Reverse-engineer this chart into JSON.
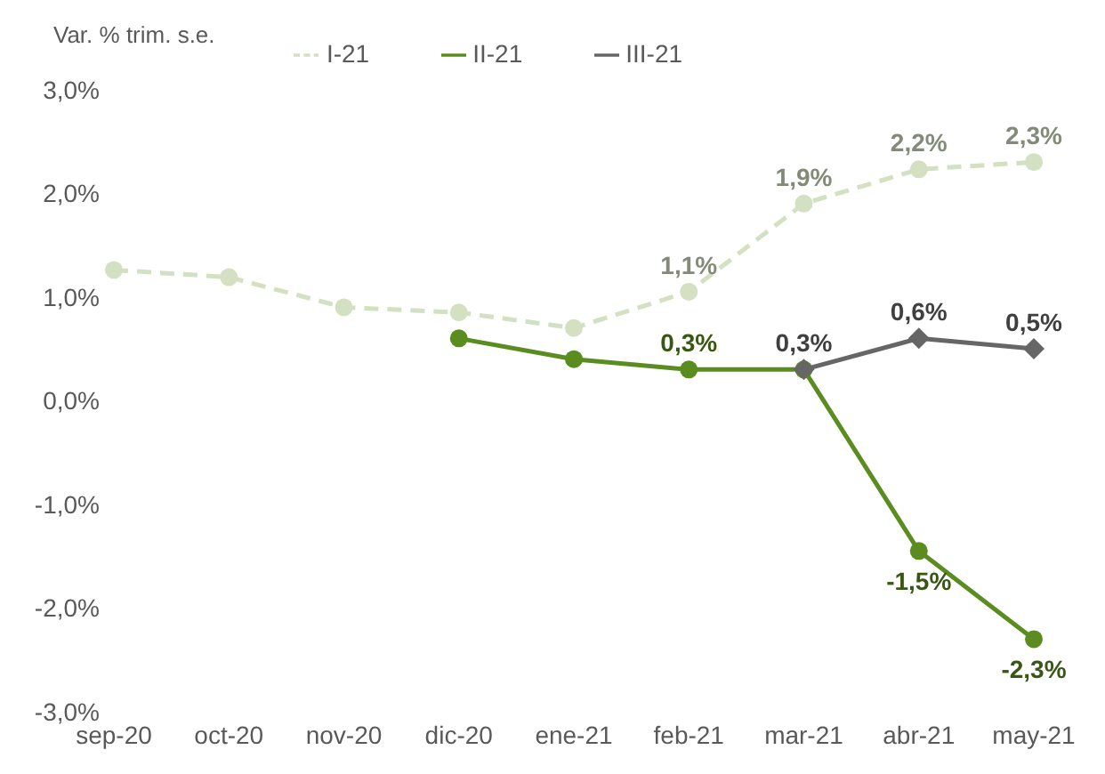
{
  "chart_data": {
    "type": "line",
    "ylabel": "Var. % trim. s.e.",
    "categories": [
      "sep-20",
      "oct-20",
      "nov-20",
      "dic-20",
      "ene-21",
      "feb-21",
      "mar-21",
      "abr-21",
      "may-21"
    ],
    "series": [
      {
        "name": "I-21",
        "color": "#d3e0c1",
        "line_style": "dashed",
        "marker": "circle",
        "values": [
          1.26,
          1.19,
          0.9,
          0.85,
          0.7,
          1.05,
          1.9,
          2.23,
          2.3
        ],
        "value_labels": [
          null,
          null,
          null,
          null,
          null,
          "1,1%",
          "1,9%",
          "2,2%",
          "2,3%"
        ]
      },
      {
        "name": "II-21",
        "color": "#5b8c1f",
        "line_style": "solid",
        "marker": "circle",
        "values": [
          null,
          null,
          null,
          0.6,
          0.4,
          0.3,
          0.3,
          -1.45,
          -2.3
        ],
        "value_labels": [
          null,
          null,
          null,
          null,
          null,
          "0,3%",
          null,
          "-1,5%",
          "-2,3%"
        ]
      },
      {
        "name": "III-21",
        "color": "#666666",
        "line_style": "solid",
        "marker": "diamond",
        "values": [
          null,
          null,
          null,
          null,
          null,
          null,
          0.3,
          0.6,
          0.5
        ],
        "value_labels": [
          null,
          null,
          null,
          null,
          null,
          null,
          "0,3%",
          "0,6%",
          "0,5%"
        ]
      }
    ],
    "ylim": [
      -3,
      3
    ],
    "yticks": [
      {
        "value": -3,
        "label": "-3,0%"
      },
      {
        "value": -2,
        "label": "-2,0%"
      },
      {
        "value": -1,
        "label": "-1,0%"
      },
      {
        "value": 0,
        "label": "0,0%"
      },
      {
        "value": 1,
        "label": "1,0%"
      },
      {
        "value": 2,
        "label": "2,0%"
      },
      {
        "value": 3,
        "label": "3,0%"
      }
    ],
    "grid": false,
    "legend": "top"
  }
}
